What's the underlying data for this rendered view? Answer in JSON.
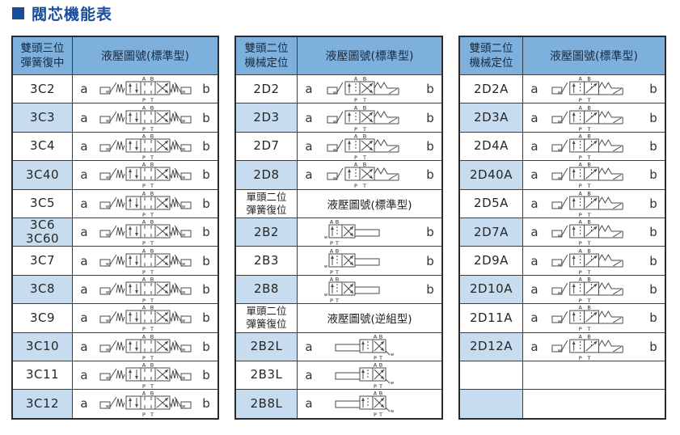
{
  "title": {
    "text": "閥芯機能表"
  },
  "ports": {
    "a": "A",
    "b": "B",
    "p": "P",
    "t": "T"
  },
  "actuator_mark": "w",
  "colors": {
    "header_bg": "#7db0dc",
    "alt_label_bg": "#c7ddef",
    "title_blue": "#1a4c9c",
    "border": "#3d3d3d",
    "diagram_stroke": "#4a4a4a"
  },
  "tables": [
    {
      "header": {
        "line1": "雙頭三位",
        "line2": "彈簧復中",
        "title": "液壓圖號(標準型)"
      },
      "rows": [
        {
          "label": "3C2",
          "a": "a",
          "b": "b",
          "kind": "3C"
        },
        {
          "label": "3C3",
          "a": "a",
          "b": "b",
          "kind": "3C"
        },
        {
          "label": "3C4",
          "a": "a",
          "b": "b",
          "kind": "3C"
        },
        {
          "label": "3C40",
          "a": "a",
          "b": "b",
          "kind": "3C"
        },
        {
          "label": "3C5",
          "a": "a",
          "b": "b",
          "kind": "3C"
        },
        {
          "label": "3C6",
          "label2": "3C60",
          "a": "a",
          "b": "b",
          "kind": "3C"
        },
        {
          "label": "3C7",
          "a": "a",
          "b": "b",
          "kind": "3C"
        },
        {
          "label": "3C8",
          "a": "a",
          "b": "b",
          "kind": "3C"
        },
        {
          "label": "3C9",
          "a": "a",
          "b": "b",
          "kind": "3C"
        },
        {
          "label": "3C10",
          "a": "a",
          "b": "b",
          "kind": "3C"
        },
        {
          "label": "3C11",
          "a": "a",
          "b": "b",
          "kind": "3C"
        },
        {
          "label": "3C12",
          "a": "a",
          "b": "b",
          "kind": "3C"
        }
      ]
    },
    {
      "header": {
        "line1": "雙頭二位",
        "line2": "機械定位",
        "title": "液壓圖號(標準型)"
      },
      "rows": [
        {
          "label": "2D2",
          "a": "a",
          "b": "b",
          "kind": "2D"
        },
        {
          "label": "2D3",
          "a": "a",
          "b": "b",
          "kind": "2D"
        },
        {
          "label": "2D7",
          "a": "a",
          "b": "b",
          "kind": "2D"
        },
        {
          "label": "2D8",
          "a": "a",
          "b": "b",
          "kind": "2D"
        },
        {
          "type": "subheader",
          "line1": "單頭二位",
          "line2": "彈簧復位",
          "title": "液壓圖號(標準型)"
        },
        {
          "label": "2B2",
          "b": "b",
          "kind": "2B"
        },
        {
          "label": "2B3",
          "b": "b",
          "kind": "2B"
        },
        {
          "label": "2B8",
          "b": "b",
          "kind": "2B"
        },
        {
          "type": "subheader",
          "line1": "單頭二位",
          "line2": "彈簧復位",
          "title": "液壓圖號(逆組型)"
        },
        {
          "label": "2B2L",
          "a": "a",
          "kind": "2BL"
        },
        {
          "label": "2B3L",
          "a": "a",
          "kind": "2BL"
        },
        {
          "label": "2B8L",
          "a": "a",
          "kind": "2BL"
        }
      ]
    },
    {
      "header": {
        "line1": "雙頭二位",
        "line2": "機械定位",
        "title": "液壓圖號(標準型)"
      },
      "rows": [
        {
          "label": "2D2A",
          "a": "a",
          "b": "b",
          "kind": "2DA"
        },
        {
          "label": "2D3A",
          "a": "a",
          "b": "b",
          "kind": "2DA"
        },
        {
          "label": "2D4A",
          "a": "a",
          "b": "b",
          "kind": "2DA"
        },
        {
          "label": "2D40A",
          "a": "a",
          "b": "b",
          "kind": "2DA"
        },
        {
          "label": "2D5A",
          "a": "a",
          "b": "b",
          "kind": "2DA"
        },
        {
          "label": "2D7A",
          "a": "a",
          "b": "b",
          "kind": "2DA"
        },
        {
          "label": "2D9A",
          "a": "a",
          "b": "b",
          "kind": "2DA"
        },
        {
          "label": "2D10A",
          "a": "a",
          "b": "b",
          "kind": "2DA"
        },
        {
          "label": "2D11A",
          "a": "a",
          "b": "b",
          "kind": "2DA"
        },
        {
          "label": "2D12A",
          "a": "a",
          "b": "b",
          "kind": "2DA"
        },
        {
          "type": "empty"
        },
        {
          "type": "empty"
        }
      ]
    }
  ]
}
